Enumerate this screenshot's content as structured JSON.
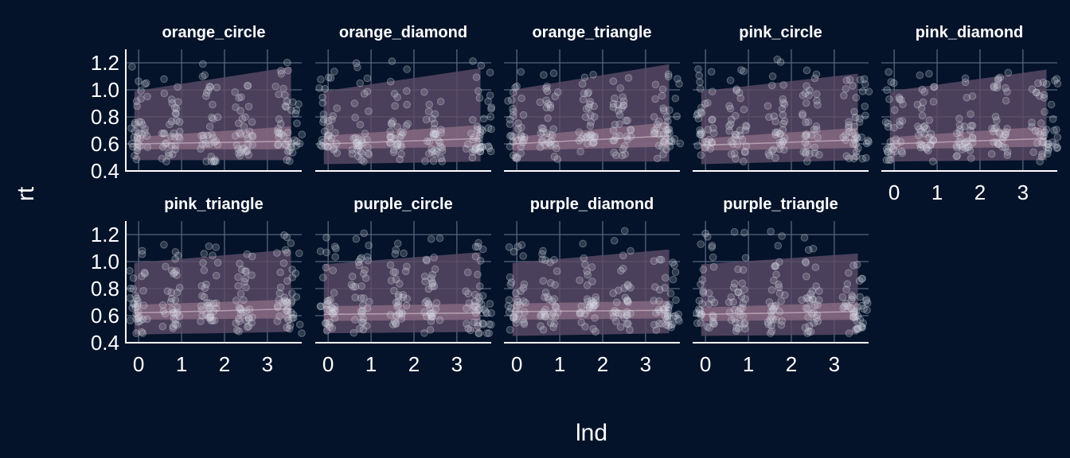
{
  "chart_data": {
    "type": "scatter",
    "xlabel": "lnd",
    "ylabel": "rt",
    "xlim": [
      -0.3,
      3.8
    ],
    "ylim": [
      0.4,
      1.3
    ],
    "x_ticks": [
      0,
      1,
      2,
      3
    ],
    "y_ticks": [
      0.4,
      0.6,
      0.8,
      1.0,
      1.2
    ],
    "colors": {
      "background": "#04132a",
      "grid": "#58657c",
      "text": "#ffffff",
      "outer_band": "#5b4a66",
      "inner_band": "#8a6b84",
      "center_line": "#c9b7c4",
      "points": "#d8dbe6"
    },
    "facets": [
      {
        "name": "orange_circle",
        "band_x": [
          -0.1,
          3.55
        ],
        "outer_low": [
          0.48,
          0.48
        ],
        "outer_high": [
          0.99,
          1.17
        ],
        "inner_low": [
          0.56,
          0.56
        ],
        "inner_high": [
          0.65,
          0.73
        ],
        "center": [
          0.6,
          0.62
        ],
        "seed": 11
      },
      {
        "name": "orange_diamond",
        "band_x": [
          -0.1,
          3.55
        ],
        "outer_low": [
          0.45,
          0.47
        ],
        "outer_high": [
          0.99,
          1.16
        ],
        "inner_low": [
          0.56,
          0.58
        ],
        "inner_high": [
          0.66,
          0.74
        ],
        "center": [
          0.6,
          0.64
        ],
        "seed": 23
      },
      {
        "name": "orange_triangle",
        "band_x": [
          -0.1,
          3.55
        ],
        "outer_low": [
          0.47,
          0.47
        ],
        "outer_high": [
          1.0,
          1.19
        ],
        "inner_low": [
          0.55,
          0.58
        ],
        "inner_high": [
          0.65,
          0.76
        ],
        "center": [
          0.6,
          0.66
        ],
        "seed": 37
      },
      {
        "name": "pink_circle",
        "band_x": [
          -0.1,
          3.55
        ],
        "outer_low": [
          0.45,
          0.48
        ],
        "outer_high": [
          0.99,
          1.12
        ],
        "inner_low": [
          0.55,
          0.57
        ],
        "inner_high": [
          0.64,
          0.72
        ],
        "center": [
          0.59,
          0.63
        ],
        "seed": 41
      },
      {
        "name": "pink_diamond",
        "band_x": [
          -0.1,
          3.55
        ],
        "outer_low": [
          0.47,
          0.48
        ],
        "outer_high": [
          0.99,
          1.15
        ],
        "inner_low": [
          0.56,
          0.58
        ],
        "inner_high": [
          0.65,
          0.73
        ],
        "center": [
          0.6,
          0.64
        ],
        "seed": 53
      },
      {
        "name": "pink_triangle",
        "band_x": [
          -0.1,
          3.55
        ],
        "outer_low": [
          0.46,
          0.48
        ],
        "outer_high": [
          0.99,
          1.09
        ],
        "inner_low": [
          0.57,
          0.58
        ],
        "inner_high": [
          0.68,
          0.72
        ],
        "center": [
          0.62,
          0.65
        ],
        "seed": 67
      },
      {
        "name": "purple_circle",
        "band_x": [
          -0.1,
          3.55
        ],
        "outer_low": [
          0.47,
          0.48
        ],
        "outer_high": [
          0.98,
          1.07
        ],
        "inner_low": [
          0.56,
          0.57
        ],
        "inner_high": [
          0.67,
          0.69
        ],
        "center": [
          0.61,
          0.62
        ],
        "seed": 71
      },
      {
        "name": "purple_diamond",
        "band_x": [
          -0.1,
          3.55
        ],
        "outer_low": [
          0.45,
          0.47
        ],
        "outer_high": [
          0.99,
          1.09
        ],
        "inner_low": [
          0.57,
          0.58
        ],
        "inner_high": [
          0.69,
          0.71
        ],
        "center": [
          0.63,
          0.64
        ],
        "seed": 83
      },
      {
        "name": "purple_triangle",
        "band_x": [
          -0.1,
          3.55
        ],
        "outer_low": [
          0.45,
          0.46
        ],
        "outer_high": [
          0.98,
          1.06
        ],
        "inner_low": [
          0.56,
          0.57
        ],
        "inner_high": [
          0.66,
          0.7
        ],
        "center": [
          0.61,
          0.63
        ],
        "seed": 97
      }
    ]
  }
}
